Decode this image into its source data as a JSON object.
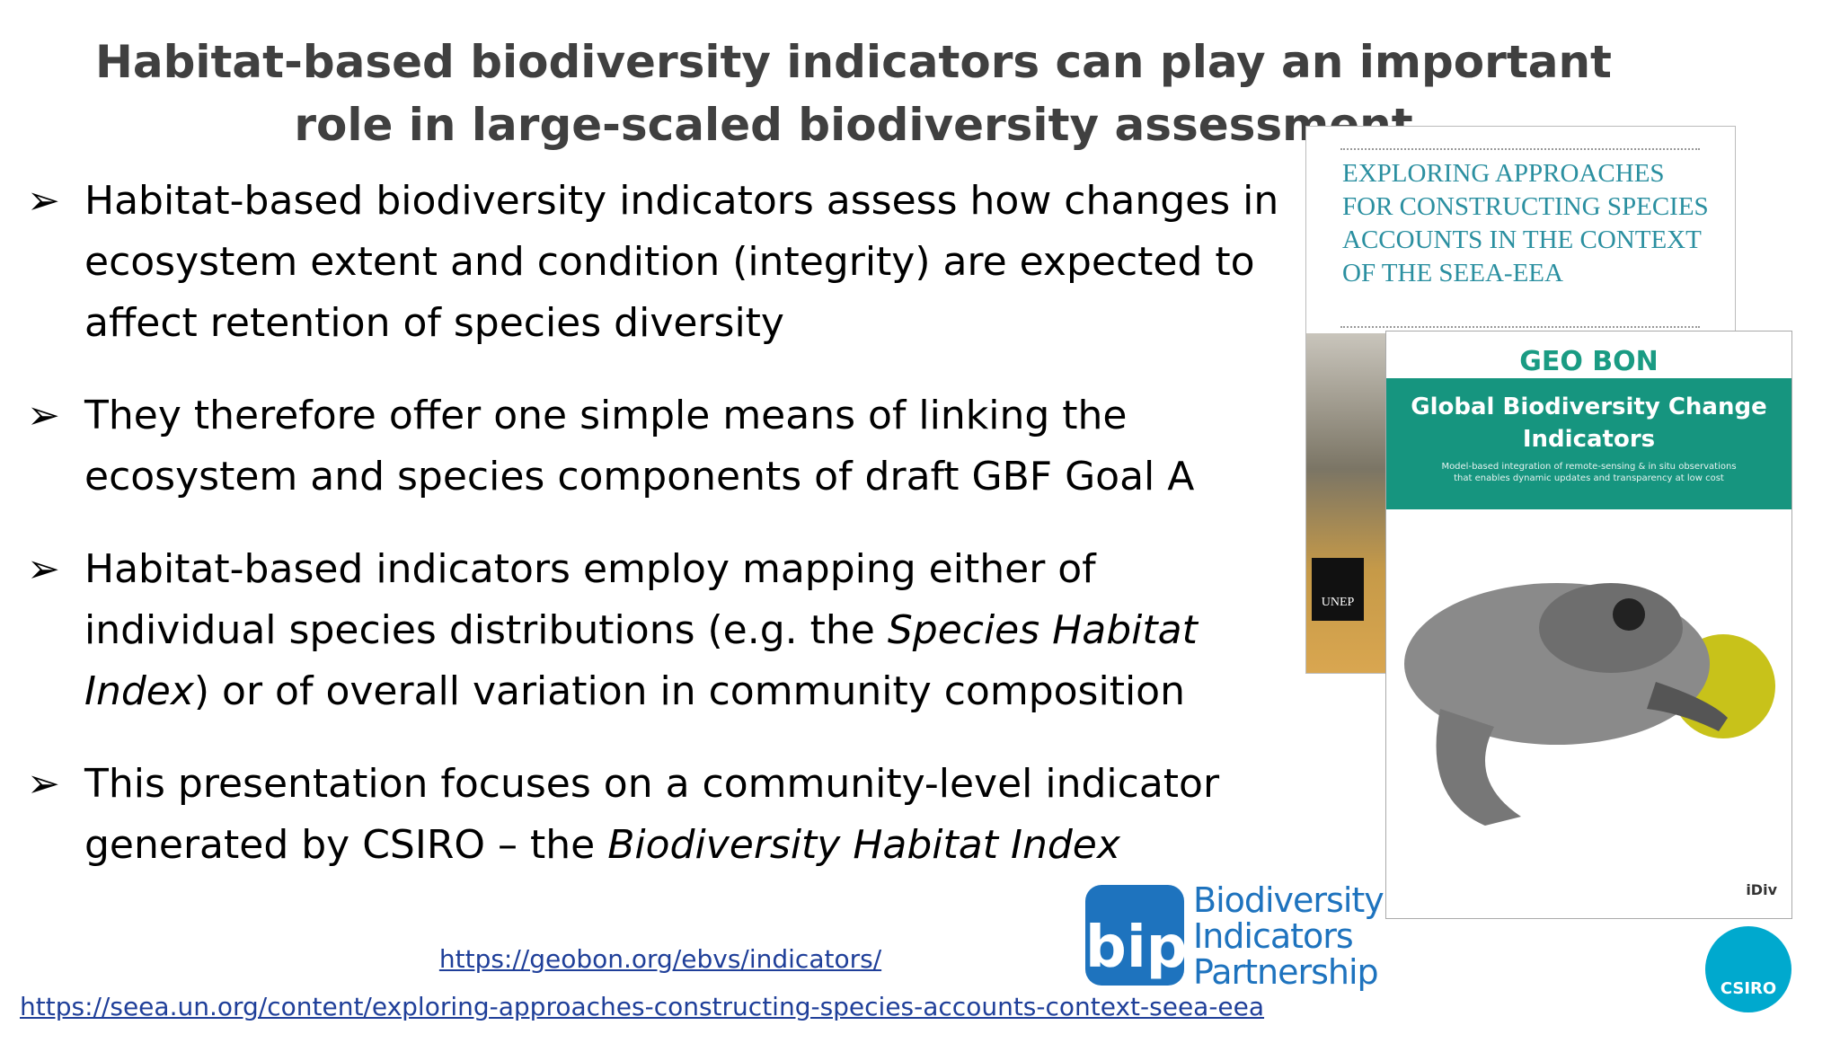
{
  "header": {
    "title": "Habitat-based biodiversity indicators can play an important role in large-scaled biodiversity assessment"
  },
  "bullets": [
    {
      "runs": [
        {
          "text": "Habitat-based biodiversity indicators assess how changes in ecosystem extent and condition (integrity) are expected to affect retention of species diversity",
          "style": "normal"
        }
      ]
    },
    {
      "runs": [
        {
          "text": "They therefore offer one simple means of linking the ecosystem and species components of draft GBF Goal A",
          "style": "normal"
        }
      ]
    },
    {
      "runs": [
        {
          "text": "Habitat-based indicators employ mapping either of individual species distributions (e.g. the ",
          "style": "normal"
        },
        {
          "text": "Species Habitat Index",
          "style": "italic"
        },
        {
          "text": ") or of overall variation in community composition",
          "style": "normal"
        }
      ]
    },
    {
      "runs": [
        {
          "text": "This presentation focuses on a community-level indicator generated by CSIRO – the ",
          "style": "normal"
        },
        {
          "text": "Biodiversity Habitat Index",
          "style": "italic"
        }
      ]
    }
  ],
  "links": [
    "https://geobon.org/ebvs/indicators/",
    "https://seea.un.org/content/exploring-approaches-constructing-species-accounts-context-seea-eea"
  ],
  "covers": {
    "seea": {
      "title": "EXPLORING APPROACHES FOR CONSTRUCTING SPECIES ACCOUNTS IN THE CONTEXT OF THE SEEA-EEA",
      "publisher": "UNEP"
    },
    "geobon": {
      "brand": "GEO BON",
      "title": "Global Biodiversity Change Indicators",
      "subtitle": "Model-based integration of remote-sensing & in situ observations that enables dynamic updates and transparency at low cost",
      "partner": "iDiv"
    }
  },
  "logos": {
    "bip_mark": "bip",
    "bip_name": "Biodiversity Indicators Partnership",
    "csiro": "CSIRO"
  }
}
